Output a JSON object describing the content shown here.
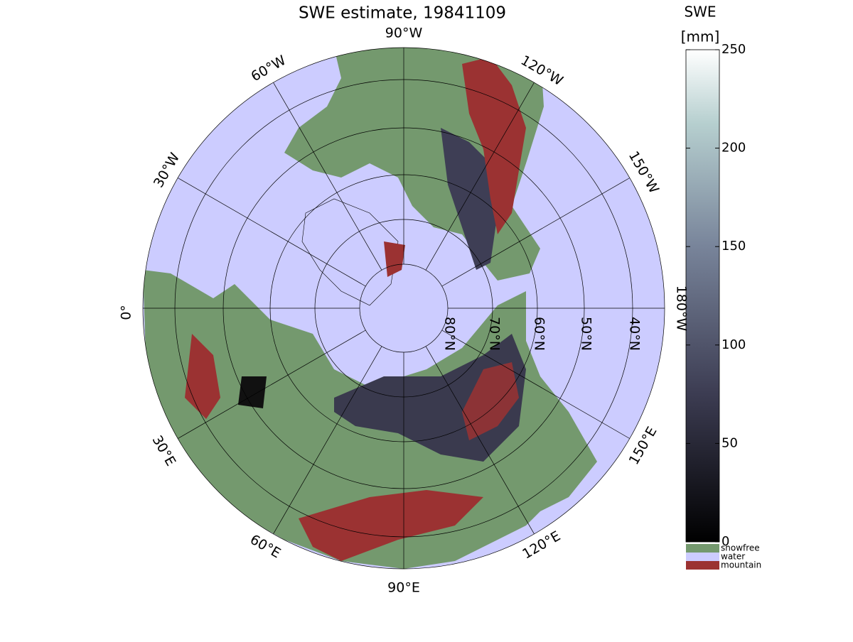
{
  "title": "SWE estimate, 19841109",
  "meridian_labels": [
    "90°W",
    "120°W",
    "150°W",
    "180°W",
    "150°E",
    "120°E",
    "90°E",
    "60°E",
    "30°E",
    "0°",
    "30°W",
    "60°W"
  ],
  "latitude_labels": [
    "80°N",
    "70°N",
    "60°N",
    "50°N",
    "40°N"
  ],
  "colorbar": {
    "title": "SWE",
    "unit": "[mm]",
    "lim": [
      0,
      250
    ],
    "ticks": [
      0,
      50,
      100,
      150,
      200,
      250
    ]
  },
  "legend": [
    {
      "name": "snowfree",
      "color": "#74996e"
    },
    {
      "name": "water",
      "color": "#ccccff"
    },
    {
      "name": "mountain",
      "color": "#9b3232"
    }
  ]
}
